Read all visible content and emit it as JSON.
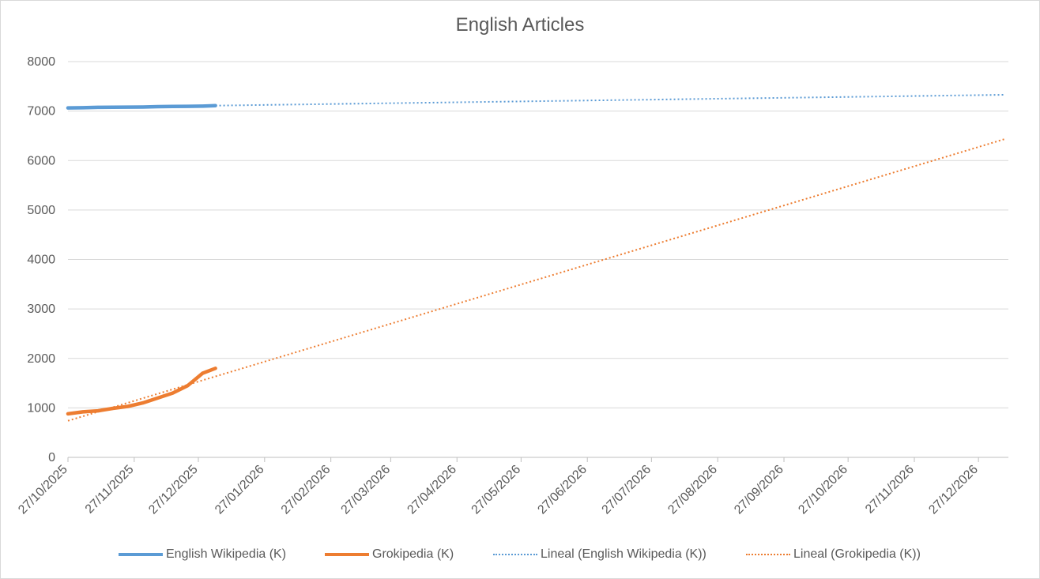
{
  "chart_data": {
    "type": "line",
    "title": "English Articles",
    "xlabel": "",
    "ylabel": "",
    "ylim": [
      0,
      8000
    ],
    "y_ticks": [
      0,
      1000,
      2000,
      3000,
      4000,
      5000,
      6000,
      7000,
      8000
    ],
    "x_range": [
      "2025-10-27",
      "2027-01-10"
    ],
    "x_tick_labels": [
      "27/10/2025",
      "27/11/2025",
      "27/12/2025",
      "27/01/2026",
      "27/02/2026",
      "27/03/2026",
      "27/04/2026",
      "27/05/2026",
      "27/06/2026",
      "27/07/2026",
      "27/08/2026",
      "27/09/2026",
      "27/10/2026",
      "27/11/2026",
      "27/12/2026"
    ],
    "x_ticks": [
      "2025-10-27",
      "2025-11-27",
      "2025-12-27",
      "2026-01-27",
      "2026-02-27",
      "2026-03-27",
      "2026-04-27",
      "2026-05-27",
      "2026-06-27",
      "2026-07-27",
      "2026-08-27",
      "2026-09-27",
      "2026-10-27",
      "2026-11-27",
      "2026-12-27"
    ],
    "grid": true,
    "legend_position": "bottom",
    "series": [
      {
        "name": "English Wikipedia (K)",
        "color": "#5b9bd5",
        "style": "solid",
        "points": [
          [
            "2025-10-27",
            7065
          ],
          [
            "2025-11-03",
            7068
          ],
          [
            "2025-11-10",
            7075
          ],
          [
            "2025-11-17",
            7078
          ],
          [
            "2025-11-24",
            7080
          ],
          [
            "2025-12-01",
            7082
          ],
          [
            "2025-12-08",
            7090
          ],
          [
            "2025-12-15",
            7095
          ],
          [
            "2025-12-22",
            7097
          ],
          [
            "2025-12-29",
            7100
          ],
          [
            "2026-01-04",
            7110
          ]
        ]
      },
      {
        "name": "Grokipedia (K)",
        "color": "#ed7d31",
        "style": "solid",
        "points": [
          [
            "2025-10-27",
            880
          ],
          [
            "2025-11-03",
            920
          ],
          [
            "2025-11-10",
            940
          ],
          [
            "2025-11-17",
            990
          ],
          [
            "2025-11-24",
            1030
          ],
          [
            "2025-12-01",
            1100
          ],
          [
            "2025-12-08",
            1200
          ],
          [
            "2025-12-15",
            1300
          ],
          [
            "2025-12-22",
            1450
          ],
          [
            "2025-12-29",
            1700
          ],
          [
            "2026-01-04",
            1800
          ]
        ]
      },
      {
        "name": "Lineal (English Wikipedia (K))",
        "color": "#5b9bd5",
        "style": "dotted",
        "points": [
          [
            "2026-01-04",
            7110
          ],
          [
            "2027-01-08",
            7330
          ]
        ]
      },
      {
        "name": "Lineal (Grokipedia (K))",
        "color": "#ed7d31",
        "style": "dotted",
        "points": [
          [
            "2025-10-27",
            740
          ],
          [
            "2027-01-08",
            6430
          ]
        ]
      }
    ]
  }
}
